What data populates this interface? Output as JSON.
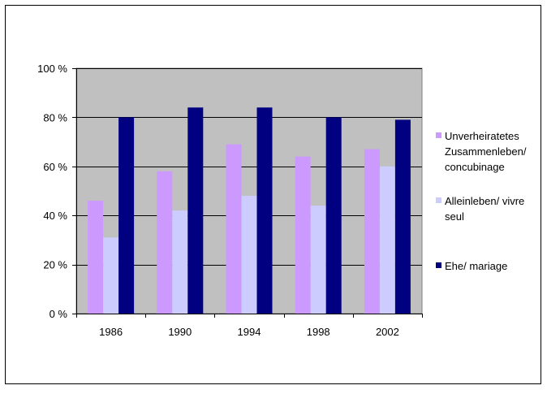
{
  "chart_data": {
    "type": "bar",
    "title": "",
    "xlabel": "",
    "ylabel": "",
    "categories": [
      "1986",
      "1990",
      "1994",
      "1998",
      "2002"
    ],
    "ylim": [
      0,
      100
    ],
    "y_ticks": [
      0,
      20,
      40,
      60,
      80,
      100
    ],
    "y_tick_labels": [
      "0 %",
      "20 %",
      "40 %",
      "60 %",
      "80 %",
      "100 %"
    ],
    "grid": true,
    "legend_position": "right",
    "series": [
      {
        "name": "Unverheiratetes Zusammenleben/ concubinage",
        "name_lines": [
          "Unverheiratetes",
          "Zusammenleben/",
          "concubinage"
        ],
        "color": "#CC99FF",
        "values": [
          46,
          58,
          69,
          64,
          67
        ]
      },
      {
        "name": "Alleinleben/ vivre seul",
        "name_lines": [
          "Alleinleben/ vivre",
          "seul"
        ],
        "color": "#CCCCFF",
        "values": [
          31,
          42,
          48,
          44,
          60
        ]
      },
      {
        "name": "Ehe/ mariage",
        "name_lines": [
          "Ehe/ mariage"
        ],
        "color": "#000080",
        "values": [
          80,
          84,
          84,
          80,
          79
        ]
      }
    ],
    "plot_background": "#C0C0C0",
    "gridline_color": "#000000"
  }
}
